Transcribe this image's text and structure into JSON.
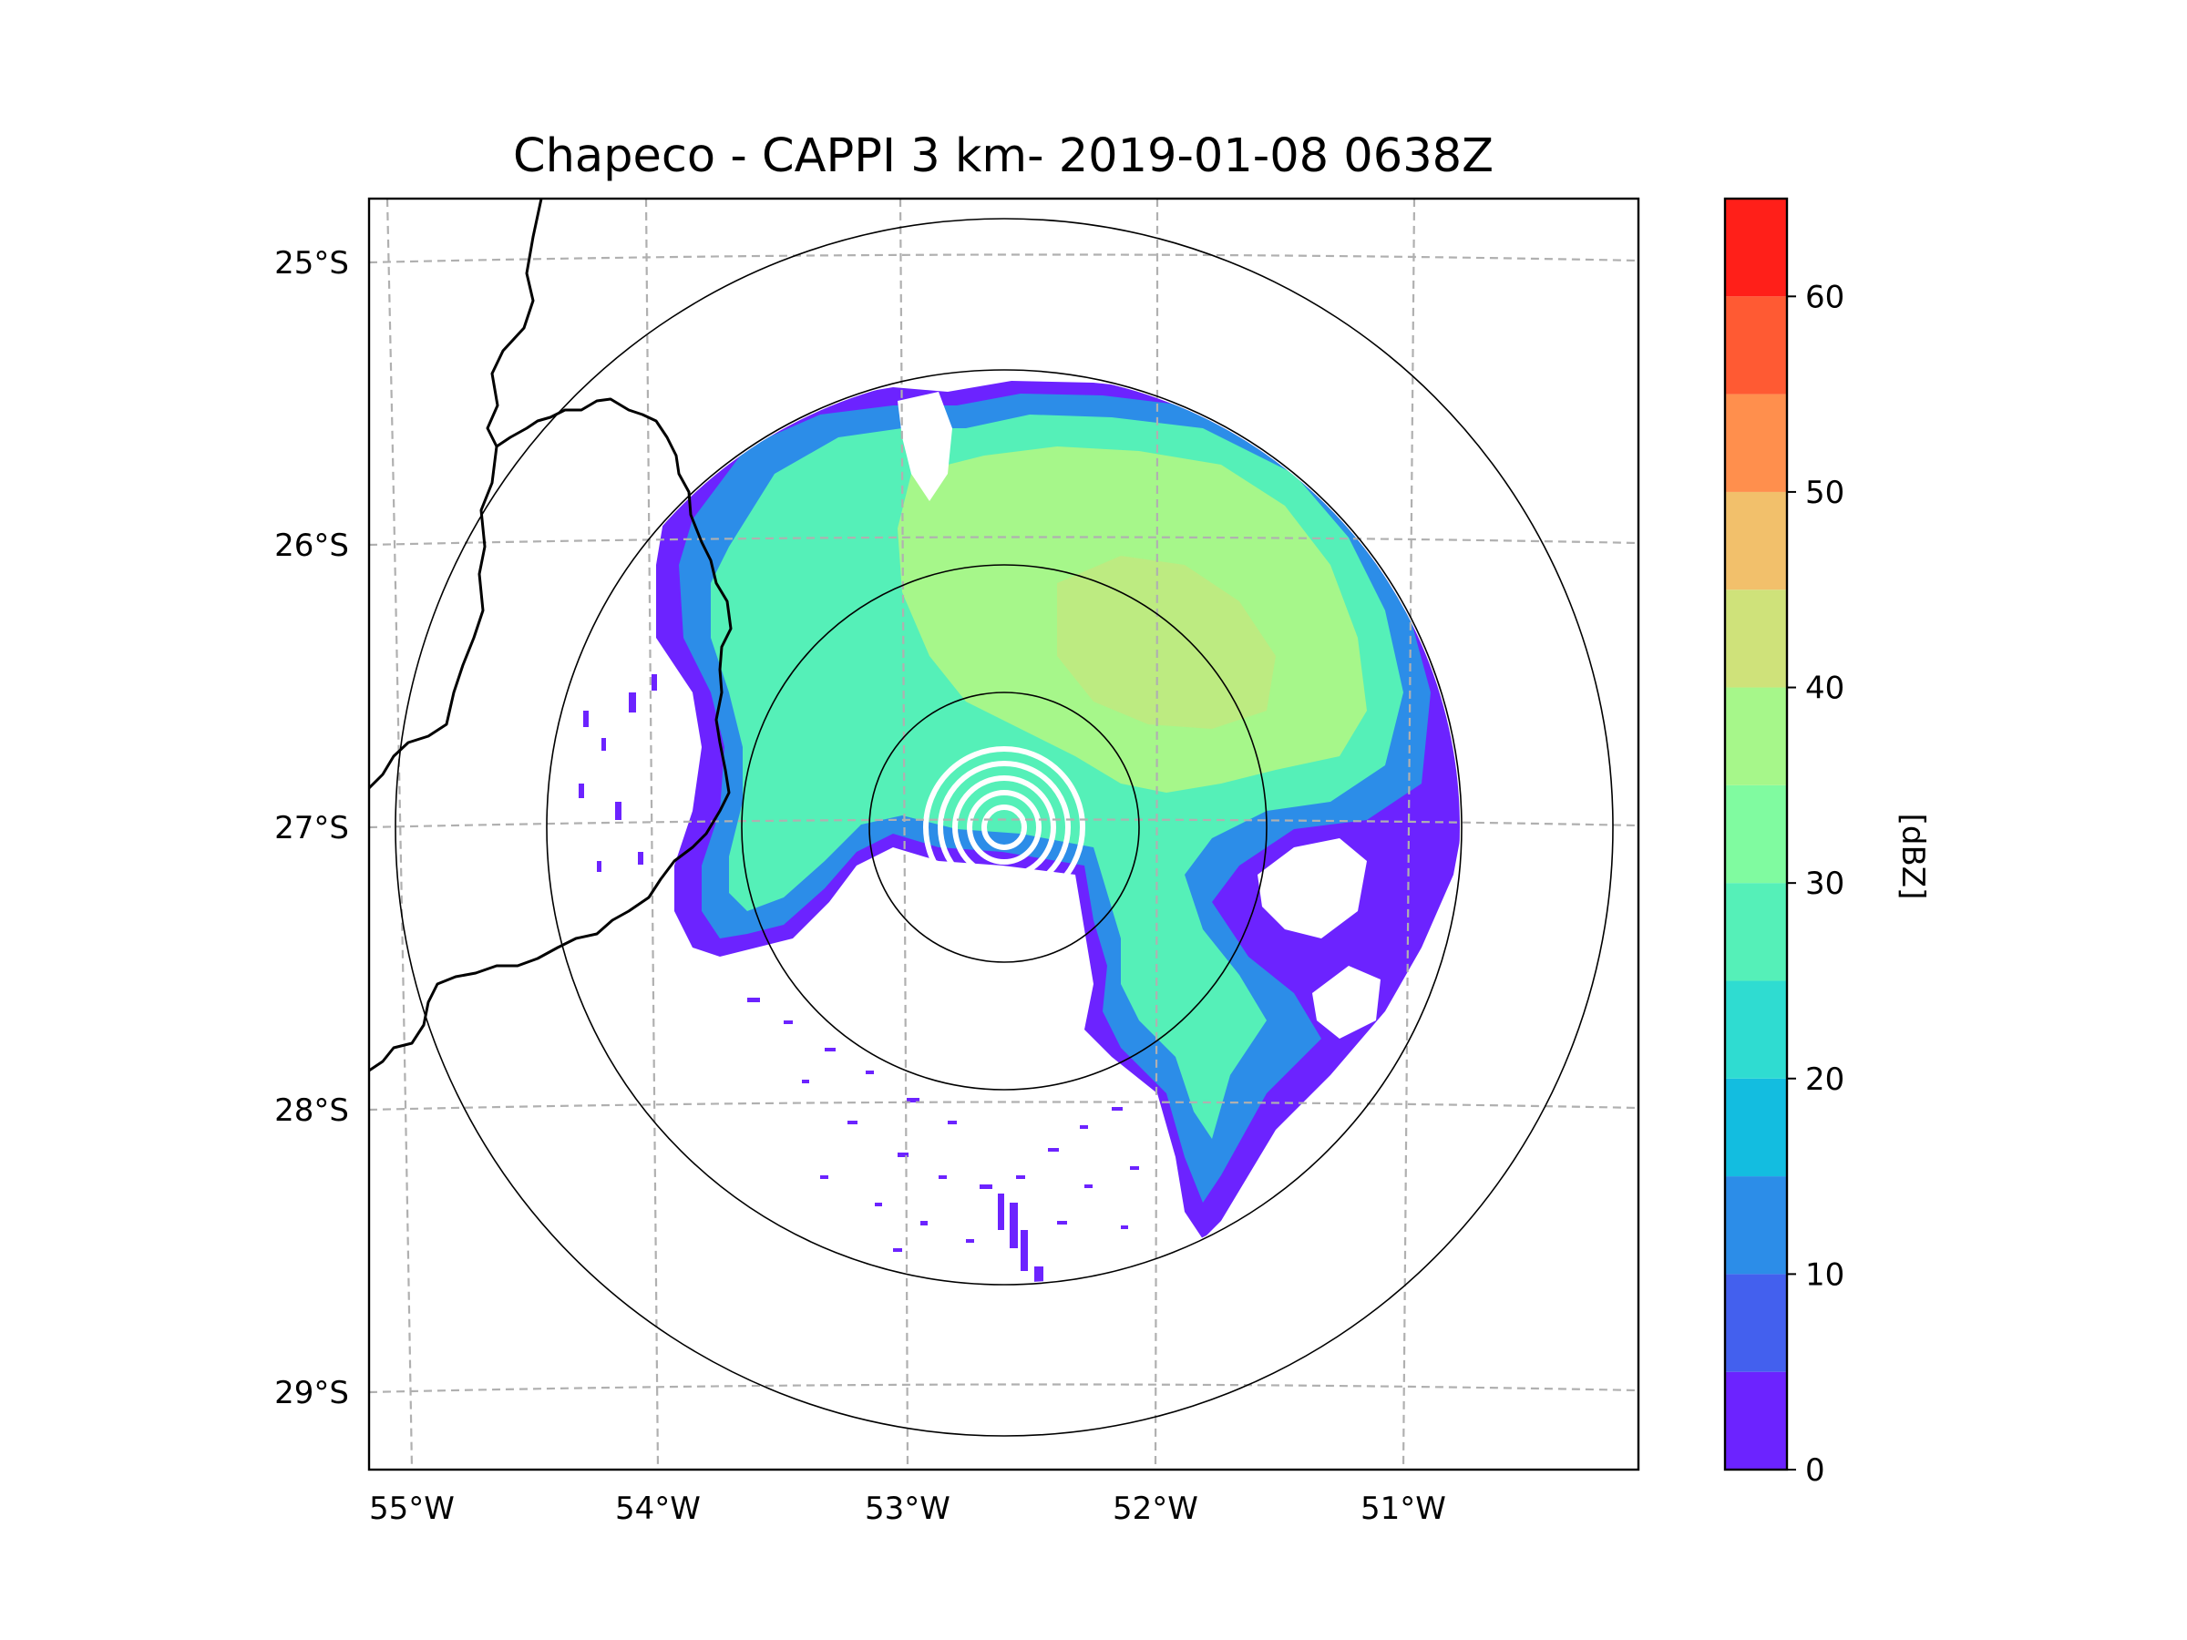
{
  "title": "Chapeco - CAPPI 3 km- 2019-01-08 0638Z",
  "map": {
    "lon_ticks": [
      {
        "value": -55,
        "label": "55°W"
      },
      {
        "value": -54,
        "label": "54°W"
      },
      {
        "value": -53,
        "label": "53°W"
      },
      {
        "value": -52,
        "label": "52°W"
      },
      {
        "value": -51,
        "label": "51°W"
      }
    ],
    "lat_ticks": [
      {
        "value": -25,
        "label": "25°S"
      },
      {
        "value": -26,
        "label": "26°S"
      },
      {
        "value": -27,
        "label": "27°S"
      },
      {
        "value": -28,
        "label": "28°S"
      },
      {
        "value": -29,
        "label": "29°S"
      }
    ],
    "gridlines": "dashed",
    "range_rings": 4,
    "radar_site": {
      "lon": -52.6,
      "lat": -27.02
    }
  },
  "colorbar": {
    "label": "[dBZ]",
    "range": [
      0,
      65
    ],
    "tick_values": [
      0,
      10,
      20,
      30,
      40,
      50,
      60
    ],
    "tick_labels": [
      "0",
      "10",
      "20",
      "30",
      "40",
      "50",
      "60"
    ],
    "levels": [
      {
        "from": 0,
        "to": 5,
        "color": "#6c23ff"
      },
      {
        "from": 5,
        "to": 10,
        "color": "#4360ee"
      },
      {
        "from": 10,
        "to": 15,
        "color": "#2c8de8"
      },
      {
        "from": 15,
        "to": 20,
        "color": "#13bde0"
      },
      {
        "from": 20,
        "to": 25,
        "color": "#2fdcd1"
      },
      {
        "from": 25,
        "to": 30,
        "color": "#55f0b8"
      },
      {
        "from": 30,
        "to": 35,
        "color": "#80fba0"
      },
      {
        "from": 35,
        "to": 40,
        "color": "#a6f78a"
      },
      {
        "from": 40,
        "to": 45,
        "color": "#cfe27a"
      },
      {
        "from": 45,
        "to": 50,
        "color": "#f2c06b"
      },
      {
        "from": 50,
        "to": 55,
        "color": "#ff8f4d"
      },
      {
        "from": 55,
        "to": 60,
        "color": "#ff5a33"
      },
      {
        "from": 60,
        "to": 65,
        "color": "#ff1f19"
      }
    ]
  }
}
